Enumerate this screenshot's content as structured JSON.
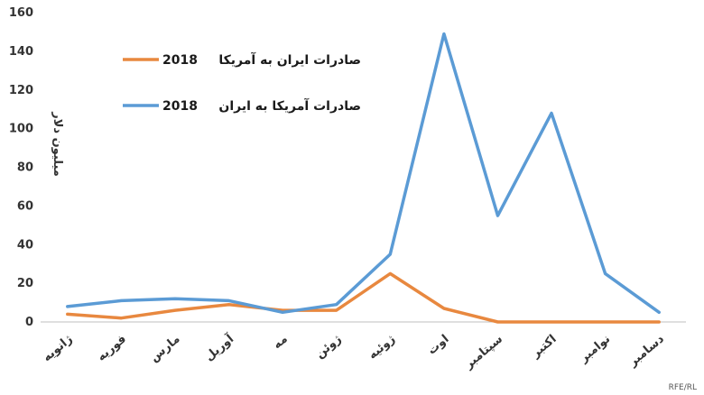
{
  "chart_data": {
    "type": "line",
    "ylabel": "میلیون دلار",
    "ylim": [
      0,
      160
    ],
    "yticks": [
      0,
      20,
      40,
      60,
      80,
      100,
      120,
      140,
      160
    ],
    "categories": [
      "ژانویه",
      "فوریه",
      "مارس",
      "آوریل",
      "مه",
      "ژوئن",
      "ژوئیه",
      "اوت",
      "سپتامبر",
      "اکتبر",
      "نوامبر",
      "دسامبر"
    ],
    "series": [
      {
        "name": "صادرات ایران به آمریکا",
        "year": "2018",
        "color": "#E8883F",
        "values": [
          4,
          2,
          6,
          9,
          6,
          6,
          25,
          7,
          0,
          0,
          0,
          0
        ]
      },
      {
        "name": "صادرات آمریکا به ایران",
        "year": "2018",
        "color": "#5B9BD5",
        "values": [
          8,
          11,
          12,
          11,
          5,
          9,
          35,
          149,
          55,
          108,
          25,
          5
        ]
      }
    ],
    "grid": false,
    "legend": "top-left",
    "watermark": "RFE/RL"
  }
}
